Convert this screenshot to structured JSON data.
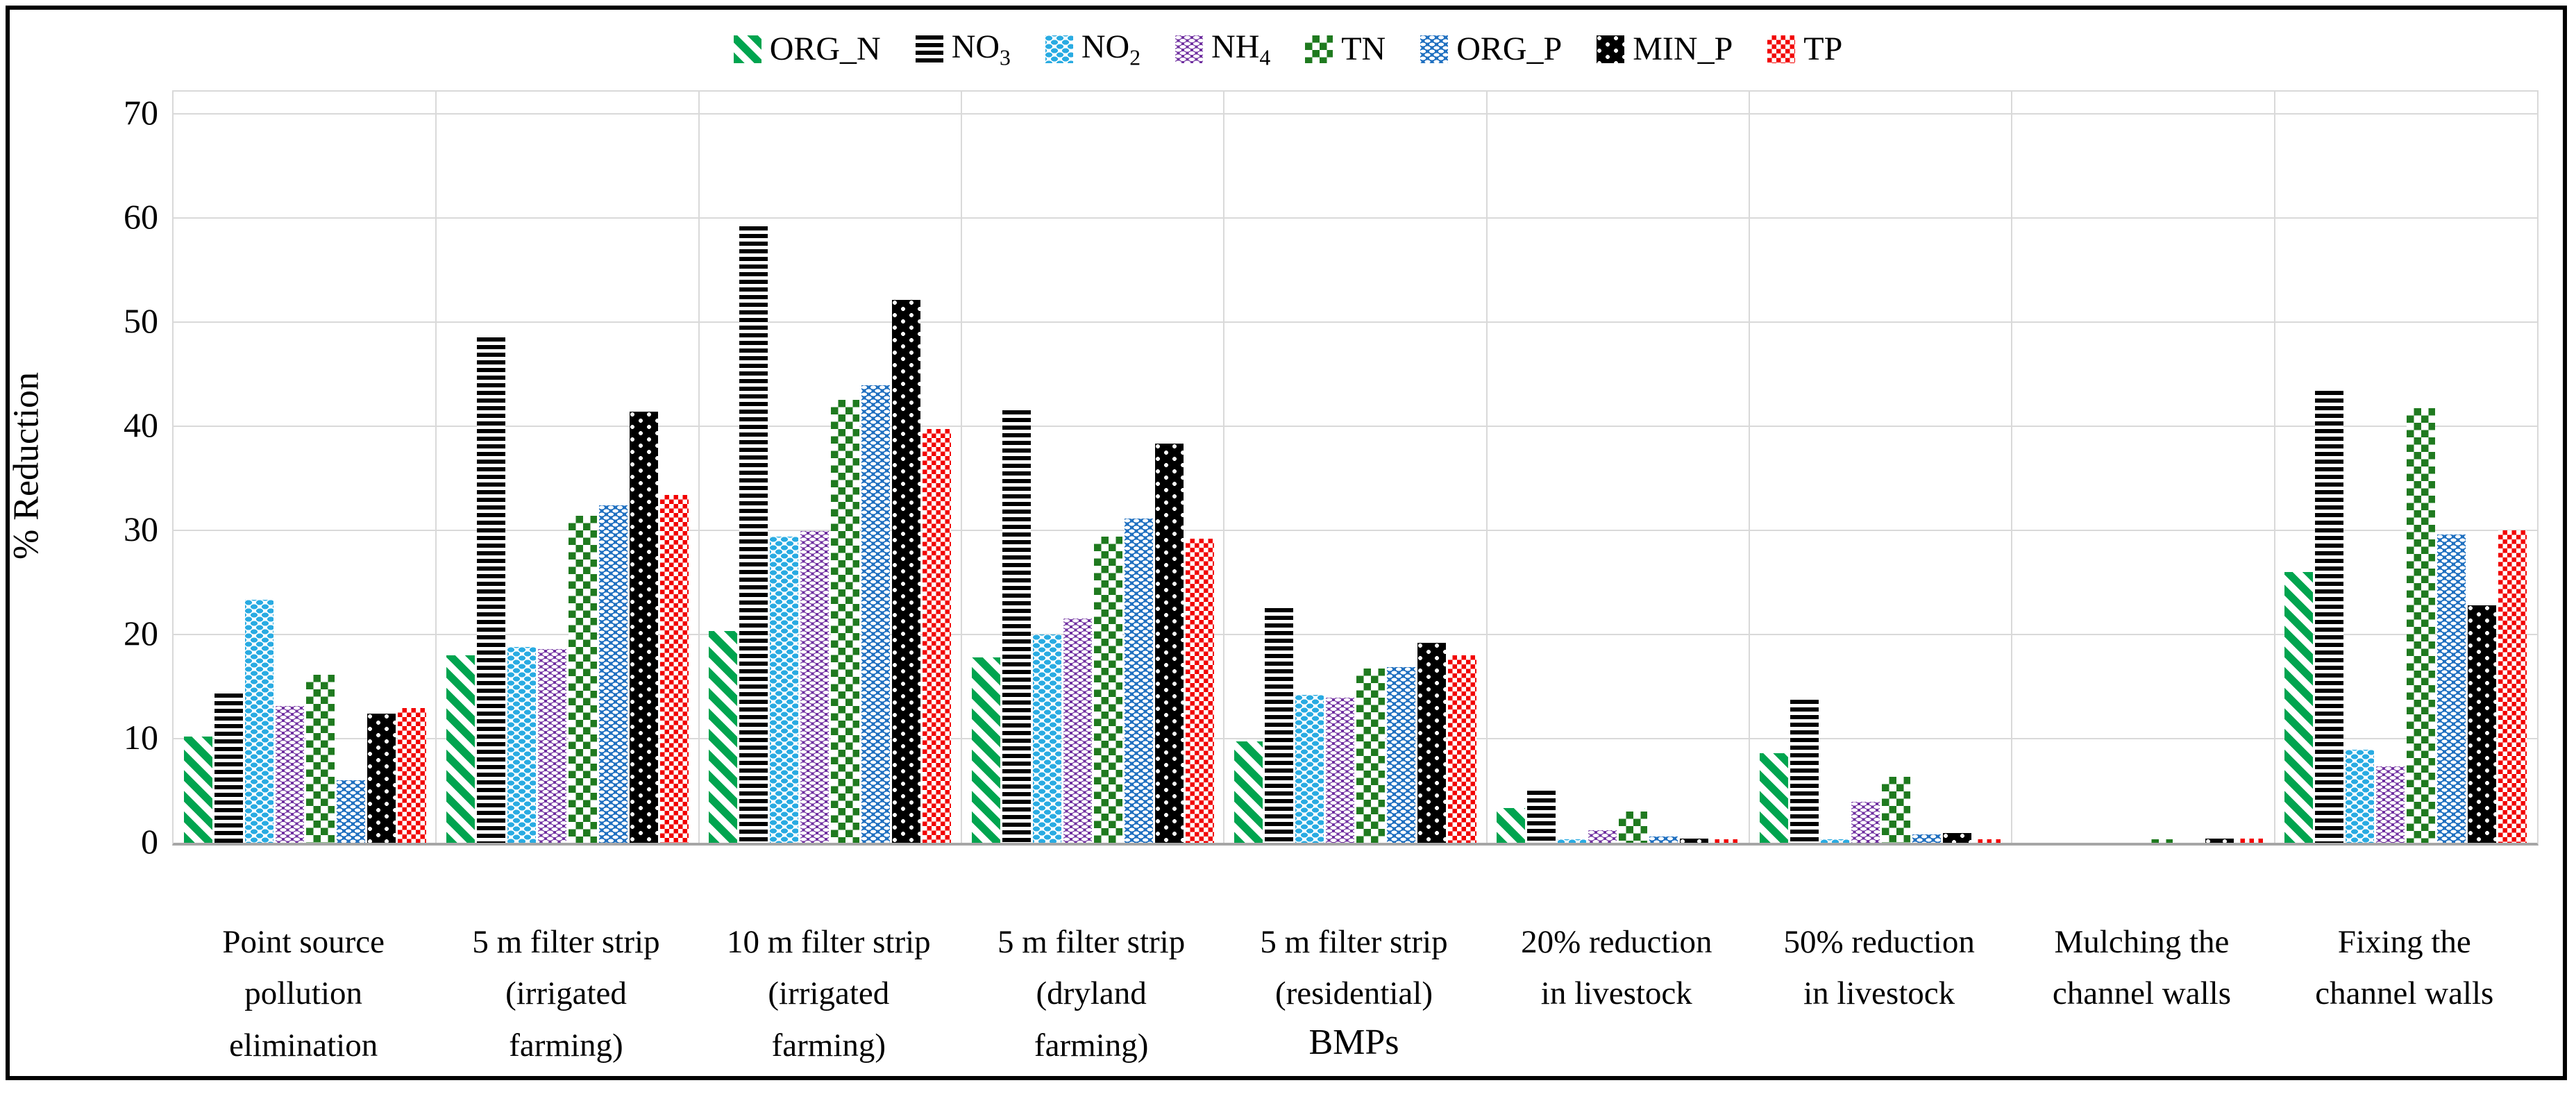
{
  "colors": {
    "org_n_green": "#00A44F",
    "no3_black": "#000000",
    "no2_cyan": "#29ABE2",
    "nh4_purple": "#7030A0",
    "tn_dark_green": "#1F7A1F",
    "org_p_blue": "#2070C0",
    "min_p_black": "#000000",
    "tp_red": "#F20000",
    "gridline": "#D9D9D9",
    "axis_line": "#A6A6A6"
  },
  "chart_data": {
    "type": "bar",
    "title": "",
    "xlabel": "BMPs",
    "ylabel": "% Reduction",
    "ylim": [
      0,
      70
    ],
    "yticks": [
      0,
      10,
      20,
      30,
      40,
      50,
      60,
      70
    ],
    "grid": true,
    "legend_position": "top",
    "categories": [
      {
        "lines": [
          "Point source",
          "pollution",
          "elimination"
        ]
      },
      {
        "lines": [
          "5 m filter strip",
          "(irrigated",
          "farming)"
        ]
      },
      {
        "lines": [
          "10 m filter strip",
          "(irrigated",
          "farming)"
        ]
      },
      {
        "lines": [
          "5 m filter strip",
          "(dryland",
          "farming)"
        ]
      },
      {
        "lines": [
          "5 m filter strip",
          "(residential)"
        ]
      },
      {
        "lines": [
          "20% reduction",
          "in livestock"
        ]
      },
      {
        "lines": [
          "50% reduction",
          "in livestock"
        ]
      },
      {
        "lines": [
          "Mulching the",
          "channel walls"
        ]
      },
      {
        "lines": [
          "Fixing the",
          "channel walls"
        ]
      }
    ],
    "series": [
      {
        "key": "org_n",
        "label": {
          "text": "ORG_N",
          "sub": ""
        },
        "color": "#00A44F",
        "pattern": "green-diagonal-stripes",
        "values": [
          10.2,
          18.0,
          20.3,
          17.8,
          9.7,
          3.3,
          8.6,
          0,
          26.0
        ]
      },
      {
        "key": "no3",
        "label": {
          "text": "NO",
          "sub": "3"
        },
        "color": "#000000",
        "pattern": "black-horizontal-stripes",
        "values": [
          14.3,
          48.5,
          59.2,
          41.5,
          22.5,
          5.0,
          13.7,
          0,
          43.4
        ]
      },
      {
        "key": "no2",
        "label": {
          "text": "NO",
          "sub": "2"
        },
        "color": "#29ABE2",
        "pattern": "cyan-dots-on-white",
        "values": [
          23.3,
          18.8,
          29.4,
          20.0,
          14.2,
          0.3,
          0.3,
          0,
          8.9
        ]
      },
      {
        "key": "nh4",
        "label": {
          "text": "NH",
          "sub": "4"
        },
        "color": "#7030A0",
        "pattern": "purple-with-white-dashes",
        "values": [
          13.1,
          18.6,
          29.9,
          21.5,
          13.9,
          1.2,
          3.9,
          0,
          7.3
        ]
      },
      {
        "key": "tn",
        "label": {
          "text": "TN",
          "sub": ""
        },
        "color": "#1F7A1F",
        "pattern": "dark-green-checker",
        "values": [
          16.1,
          31.4,
          42.5,
          29.4,
          16.7,
          3.0,
          6.3,
          0.3,
          41.7
        ]
      },
      {
        "key": "org_p",
        "label": {
          "text": "ORG_P",
          "sub": ""
        },
        "color": "#2070C0",
        "pattern": "blue-with-white-dots",
        "values": [
          6.0,
          32.4,
          43.9,
          31.1,
          16.9,
          0.6,
          0.8,
          0,
          29.6
        ]
      },
      {
        "key": "min_p",
        "label": {
          "text": "MIN_P",
          "sub": ""
        },
        "color": "#000000",
        "pattern": "black-with-white-dots",
        "values": [
          12.4,
          41.4,
          52.1,
          38.3,
          19.2,
          0.4,
          0.9,
          0.4,
          22.8
        ]
      },
      {
        "key": "tp",
        "label": {
          "text": "TP",
          "sub": ""
        },
        "color": "#F20000",
        "pattern": "red-checker",
        "values": [
          12.9,
          33.4,
          39.7,
          29.2,
          18.0,
          0.3,
          0.3,
          0.4,
          30.0
        ]
      }
    ]
  },
  "axes": {
    "y_title": "% Reduction",
    "x_title": "BMPs"
  }
}
